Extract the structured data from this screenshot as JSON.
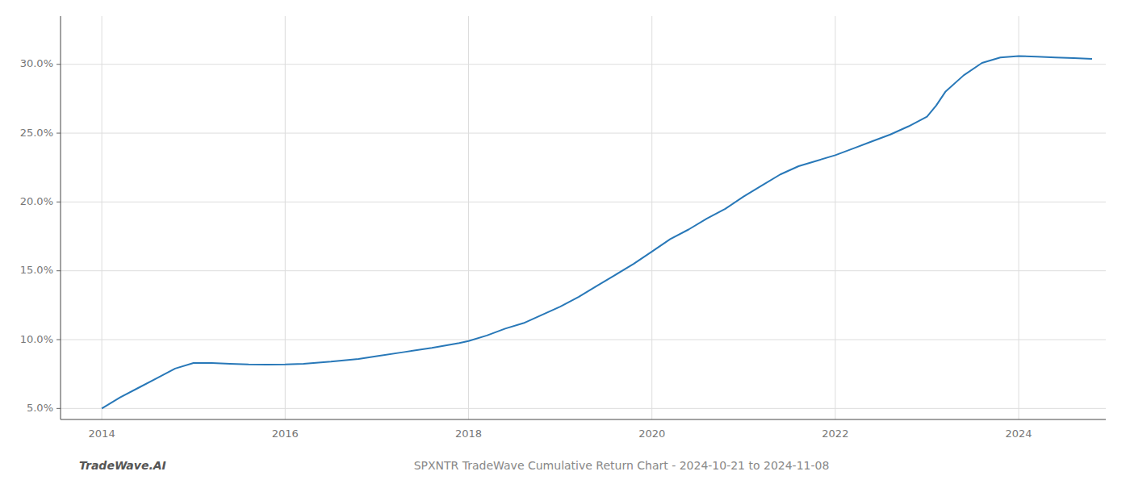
{
  "chart_data": {
    "type": "line",
    "title": "SPXNTR TradeWave Cumulative Return Chart - 2024-10-21 to 2024-11-08",
    "annotations": [
      "TradeWave.AI"
    ],
    "x": [
      2014.0,
      2014.2,
      2014.4,
      2014.6,
      2014.8,
      2015.0,
      2015.2,
      2015.4,
      2015.6,
      2015.8,
      2016.0,
      2016.2,
      2016.5,
      2016.8,
      2017.0,
      2017.3,
      2017.6,
      2017.9,
      2018.0,
      2018.2,
      2018.4,
      2018.6,
      2018.8,
      2019.0,
      2019.2,
      2019.4,
      2019.6,
      2019.8,
      2020.0,
      2020.2,
      2020.4,
      2020.6,
      2020.8,
      2021.0,
      2021.2,
      2021.4,
      2021.6,
      2021.8,
      2022.0,
      2022.2,
      2022.4,
      2022.6,
      2022.8,
      2023.0,
      2023.1,
      2023.2,
      2023.4,
      2023.6,
      2023.8,
      2024.0,
      2024.2,
      2024.4,
      2024.6,
      2024.8
    ],
    "values": [
      5.0,
      5.8,
      6.5,
      7.2,
      7.9,
      8.3,
      8.3,
      8.25,
      8.2,
      8.18,
      8.2,
      8.25,
      8.4,
      8.6,
      8.8,
      9.1,
      9.4,
      9.75,
      9.9,
      10.3,
      10.8,
      11.2,
      11.8,
      12.4,
      13.1,
      13.9,
      14.7,
      15.5,
      16.4,
      17.3,
      18.0,
      18.8,
      19.5,
      20.4,
      21.2,
      22.0,
      22.6,
      23.0,
      23.4,
      23.9,
      24.4,
      24.9,
      25.5,
      26.2,
      27.0,
      28.0,
      29.2,
      30.1,
      30.5,
      30.6,
      30.55,
      30.5,
      30.45,
      30.4
    ],
    "color": "#2878b8",
    "xlim": [
      2013.55,
      2024.95
    ],
    "ylim": [
      4.2,
      33.5
    ],
    "xticks": [
      2014,
      2016,
      2018,
      2020,
      2022,
      2024
    ],
    "yticks": [
      {
        "value": 5.0,
        "label": "5.0%"
      },
      {
        "value": 10.0,
        "label": "10.0%"
      },
      {
        "value": 15.0,
        "label": "15.0%"
      },
      {
        "value": 20.0,
        "label": "20.0%"
      },
      {
        "value": 25.0,
        "label": "25.0%"
      },
      {
        "value": 30.0,
        "label": "30.0%"
      }
    ],
    "grid": true
  }
}
